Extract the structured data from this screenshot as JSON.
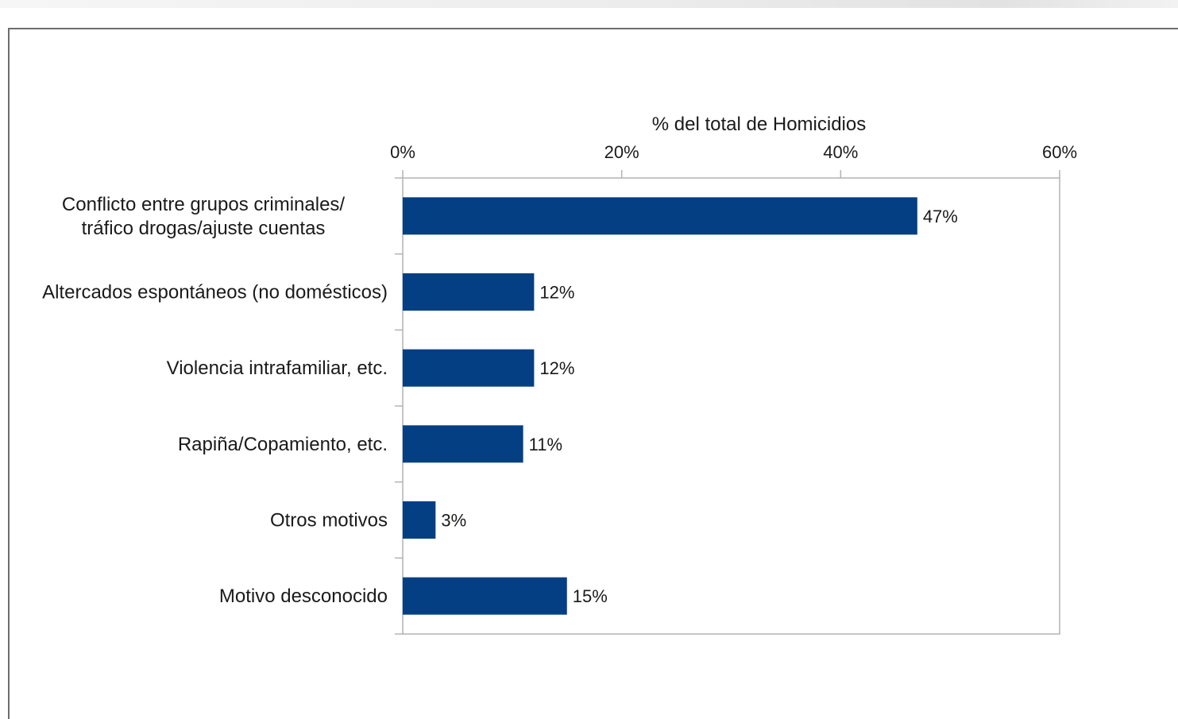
{
  "chart_data": {
    "type": "bar",
    "orientation": "horizontal",
    "xlabel": "% del total de Homicidios",
    "xlabel_position": "top",
    "xlim": [
      0,
      60
    ],
    "xticks": [
      0,
      20,
      40,
      60
    ],
    "xtick_labels": [
      "0%",
      "20%",
      "40%",
      "60%"
    ],
    "categories": [
      [
        "Conflicto entre grupos criminales/",
        "tráfico drogas/ajuste cuentas"
      ],
      [
        "Altercados espontáneos (no domésticos)"
      ],
      [
        "Violencia intrafamiliar, etc."
      ],
      [
        "Rapiña/Copamiento, etc."
      ],
      [
        "Otros motivos"
      ],
      [
        "Motivo desconocido"
      ]
    ],
    "values": [
      47,
      12,
      12,
      11,
      3,
      15
    ],
    "data_labels": [
      "47%",
      "12%",
      "12%",
      "11%",
      "3%",
      "15%"
    ],
    "bar_color": "#053f83",
    "axis_color": "#b3b3b3",
    "grid": false,
    "legend": "none"
  }
}
